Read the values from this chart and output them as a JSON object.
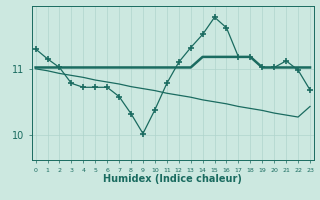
{
  "xlabel": "Humidex (Indice chaleur)",
  "bg_color": "#cce8e0",
  "line_color": "#1a6b60",
  "grid_color": "#b0d4cc",
  "x_values": [
    0,
    1,
    2,
    3,
    4,
    5,
    6,
    7,
    8,
    9,
    10,
    11,
    12,
    13,
    14,
    15,
    16,
    17,
    18,
    19,
    20,
    21,
    22,
    23
  ],
  "series1": [
    11.3,
    11.15,
    11.02,
    10.78,
    10.72,
    10.72,
    10.72,
    10.58,
    10.32,
    10.02,
    10.38,
    10.78,
    11.1,
    11.32,
    11.52,
    11.78,
    11.62,
    11.18,
    11.18,
    11.02,
    11.02,
    11.12,
    10.98,
    10.68
  ],
  "series2": [
    11.02,
    11.02,
    11.02,
    11.02,
    11.02,
    11.02,
    11.02,
    11.02,
    11.02,
    11.02,
    11.02,
    11.02,
    11.02,
    11.02,
    11.18,
    11.18,
    11.18,
    11.18,
    11.18,
    11.02,
    11.02,
    11.02,
    11.02,
    11.02
  ],
  "series3": [
    11.0,
    10.97,
    10.93,
    10.9,
    10.87,
    10.83,
    10.8,
    10.77,
    10.73,
    10.7,
    10.67,
    10.63,
    10.6,
    10.57,
    10.53,
    10.5,
    10.47,
    10.43,
    10.4,
    10.37,
    10.33,
    10.3,
    10.27,
    10.43
  ],
  "yticks": [
    10,
    11
  ],
  "ylim": [
    9.62,
    11.95
  ],
  "xlim": [
    -0.3,
    23.3
  ]
}
